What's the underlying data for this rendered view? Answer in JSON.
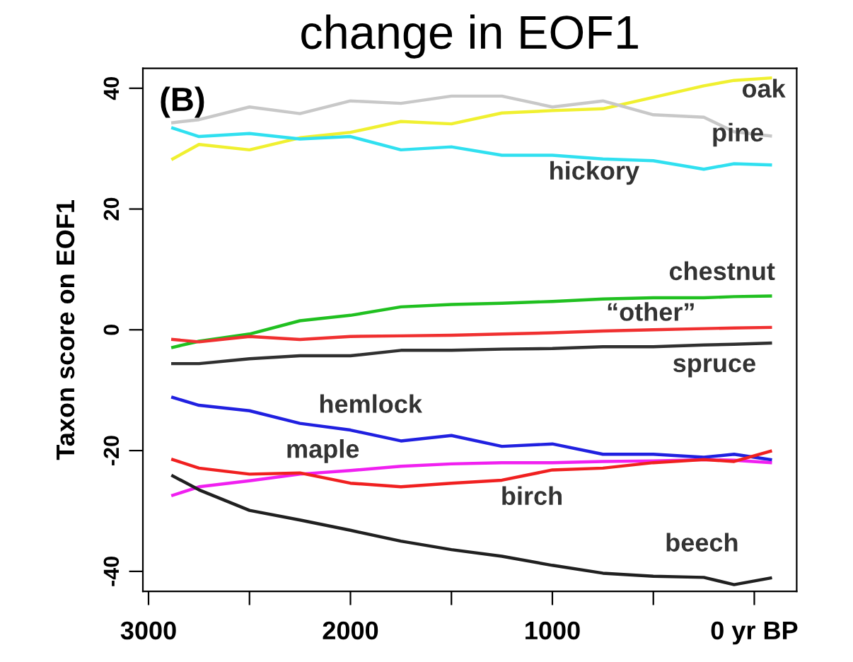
{
  "chart_data": {
    "type": "line",
    "title": "change in EOF1",
    "ylabel": "Taxon score on EOF1",
    "annotations": [
      "(B)"
    ],
    "xlim": [
      3028,
      -210
    ],
    "ylim": [
      -43.3,
      43.3
    ],
    "xticks": [
      3000,
      {
        "value": 2500,
        "label": null
      },
      2000,
      {
        "value": 1500,
        "label": null
      },
      1000,
      {
        "value": 500,
        "label": null
      },
      {
        "value": 0,
        "label": "0 yr BP"
      }
    ],
    "yticks": [
      -40,
      -20,
      0,
      20,
      40
    ],
    "grid": false,
    "legend": false,
    "marker": "none",
    "line_style": "solid",
    "x": [
      2880,
      2750,
      2500,
      2250,
      2000,
      1750,
      1500,
      1250,
      1000,
      750,
      500,
      250,
      100,
      -80
    ],
    "series": [
      {
        "name": "oak",
        "color": "#f0f030",
        "values": [
          28.3,
          30.7,
          29.8,
          31.8,
          32.7,
          34.5,
          34.1,
          35.9,
          36.3,
          36.6,
          38.5,
          40.4,
          41.3,
          41.7
        ]
      },
      {
        "name": "pine",
        "color": "#c8c8c8",
        "values": [
          34.3,
          34.8,
          36.9,
          35.8,
          37.9,
          37.5,
          38.7,
          38.7,
          36.9,
          37.9,
          35.6,
          35.2,
          32.8,
          32.1
        ]
      },
      {
        "name": "hickory",
        "color": "#30e0f0",
        "values": [
          33.4,
          32.0,
          32.5,
          31.6,
          32.0,
          29.8,
          30.3,
          28.9,
          28.9,
          28.3,
          28.0,
          26.6,
          27.5,
          27.3
        ]
      },
      {
        "name": "chestnut",
        "color": "#20c020",
        "values": [
          -2.9,
          -1.9,
          -0.7,
          1.5,
          2.4,
          3.8,
          4.2,
          4.4,
          4.7,
          5.1,
          5.3,
          5.3,
          5.5,
          5.6
        ]
      },
      {
        "name": "“other”",
        "color": "#f03030",
        "values": [
          -1.6,
          -2.0,
          -1.1,
          -1.6,
          -1.1,
          -1.0,
          -0.9,
          -0.7,
          -0.5,
          -0.2,
          0.0,
          0.2,
          0.3,
          0.4
        ]
      },
      {
        "name": "spruce",
        "color": "#303030",
        "values": [
          -5.6,
          -5.6,
          -4.8,
          -4.3,
          -4.3,
          -3.4,
          -3.4,
          -3.2,
          -3.1,
          -2.8,
          -2.8,
          -2.5,
          -2.4,
          -2.2
        ]
      },
      {
        "name": "hemlock",
        "color": "#2020e0",
        "values": [
          -11.2,
          -12.5,
          -13.4,
          -15.5,
          -16.6,
          -18.4,
          -17.5,
          -19.3,
          -18.9,
          -20.6,
          -20.6,
          -21.1,
          -20.6,
          -21.5
        ]
      },
      {
        "name": "maple",
        "color": "#f020f0",
        "values": [
          -27.4,
          -26.0,
          -25.0,
          -23.9,
          -23.3,
          -22.6,
          -22.2,
          -22.0,
          -22.0,
          -21.8,
          -21.7,
          -21.5,
          -21.6,
          -22.0
        ]
      },
      {
        "name": "birch",
        "color": "#f02020",
        "values": [
          -21.5,
          -22.9,
          -23.9,
          -23.7,
          -25.4,
          -26.0,
          -25.4,
          -24.9,
          -23.2,
          -22.9,
          -22.0,
          -21.5,
          -21.8,
          -20.1
        ]
      },
      {
        "name": "beech",
        "color": "#202020",
        "values": [
          -24.2,
          -26.5,
          -29.9,
          -31.5,
          -33.2,
          -35.0,
          -36.4,
          -37.5,
          -39.0,
          -40.3,
          -40.8,
          -41.0,
          -42.2,
          -41.1
        ]
      }
    ]
  }
}
